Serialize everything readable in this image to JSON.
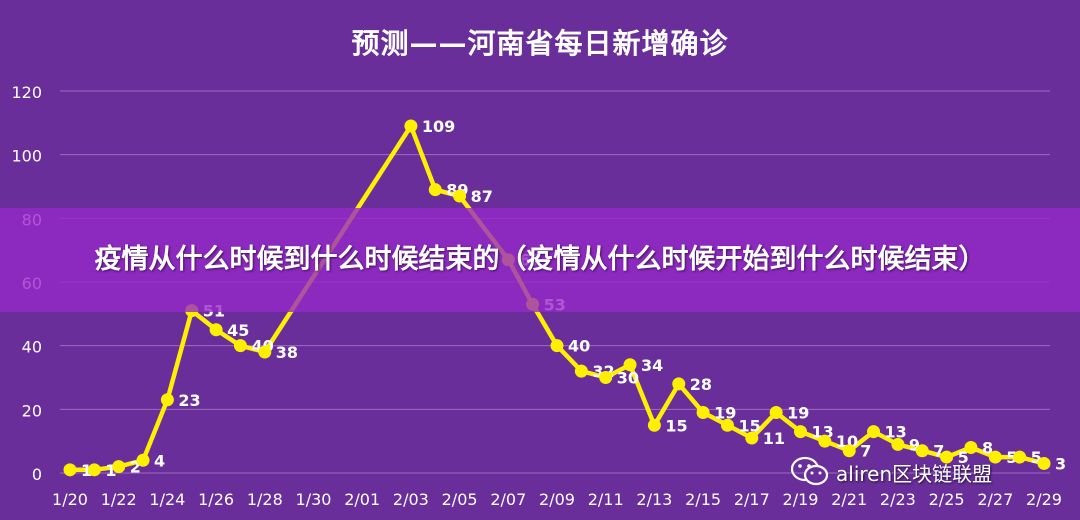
{
  "chart_data": {
    "type": "line",
    "title": "预测——河南省每日新增确诊",
    "xlabel": "",
    "ylabel": "",
    "ylim": [
      0,
      120
    ],
    "yticks": [
      0,
      20,
      40,
      60,
      80,
      100,
      120
    ],
    "grid": true,
    "x_tick_labels": [
      "1/20",
      "1/22",
      "1/24",
      "1/26",
      "1/28",
      "1/30",
      "2/01",
      "2/03",
      "2/05",
      "2/07",
      "2/09",
      "2/11",
      "2/13",
      "2/15",
      "2/17",
      "2/19",
      "2/21",
      "2/23",
      "2/25",
      "2/27",
      "2/29"
    ],
    "x": [
      "1/20",
      "1/21",
      "1/22",
      "1/23",
      "1/24",
      "1/25",
      "1/26",
      "1/27",
      "1/28",
      "1/29",
      "1/30",
      "1/31",
      "2/01",
      "2/02",
      "2/03",
      "2/04",
      "2/05",
      "2/06",
      "2/07",
      "2/08",
      "2/09",
      "2/10",
      "2/11",
      "2/12",
      "2/13",
      "2/14",
      "2/15",
      "2/16",
      "2/17",
      "2/18",
      "2/19",
      "2/20",
      "2/21",
      "2/22",
      "2/23",
      "2/24",
      "2/25",
      "2/26",
      "2/27",
      "2/28",
      "2/29"
    ],
    "values": [
      1,
      1,
      2,
      4,
      23,
      51,
      45,
      40,
      38,
      null,
      null,
      null,
      null,
      null,
      109,
      89,
      87,
      null,
      67,
      53,
      40,
      32,
      30,
      34,
      15,
      28,
      19,
      15,
      11,
      19,
      13,
      10,
      7,
      13,
      9,
      7,
      5,
      8,
      5,
      5,
      3
    ],
    "labels": [
      "1",
      "1",
      "2",
      "4",
      "23",
      "51",
      "45",
      "40",
      "38",
      "",
      "",
      "",
      "",
      "",
      "109",
      "89",
      "87",
      "",
      "67",
      "53",
      "40",
      "32",
      "30",
      "34",
      "15",
      "28",
      "19",
      "15",
      "11",
      "19",
      "13",
      "10",
      "7",
      "13",
      "9",
      "7",
      "5",
      "8",
      "5",
      "5",
      "3"
    ],
    "series_color": "#ffef00"
  },
  "overlay": {
    "text": "疫情从什么时候到什么时候结束的（疫情从什么时候开始到什么时候结束）",
    "background": "#9628c8"
  },
  "watermark": {
    "text": "aliren区块链联盟",
    "icon": "wechat-icon"
  },
  "colors": {
    "background": "#6a2e9a",
    "grid": "#9a6cc0",
    "axis_text": "#ffffff",
    "line": "#ffef00"
  }
}
